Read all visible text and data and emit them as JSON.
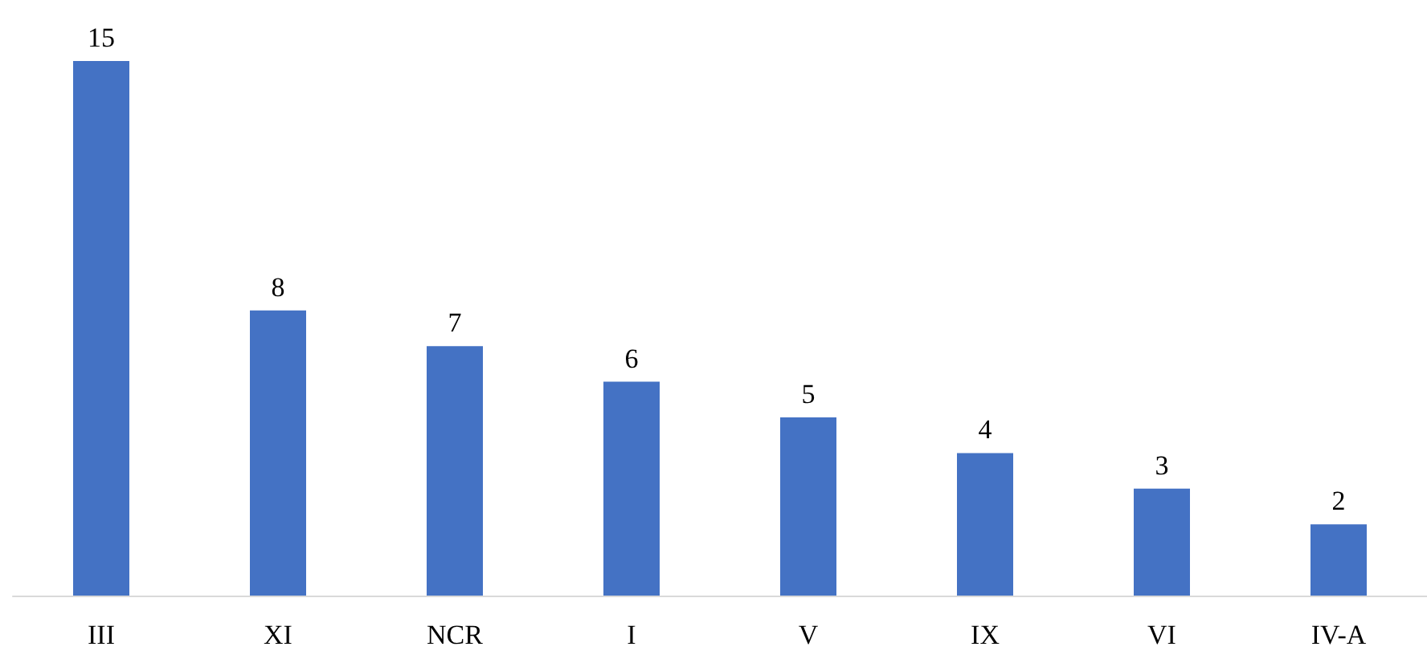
{
  "chart_data": {
    "type": "bar",
    "categories": [
      "III",
      "XI",
      "NCR",
      "I",
      "V",
      "IX",
      "VI",
      "IV-A"
    ],
    "values": [
      15,
      8,
      7,
      6,
      5,
      4,
      3,
      2
    ],
    "color": "#4472c4",
    "data_labels": true
  }
}
